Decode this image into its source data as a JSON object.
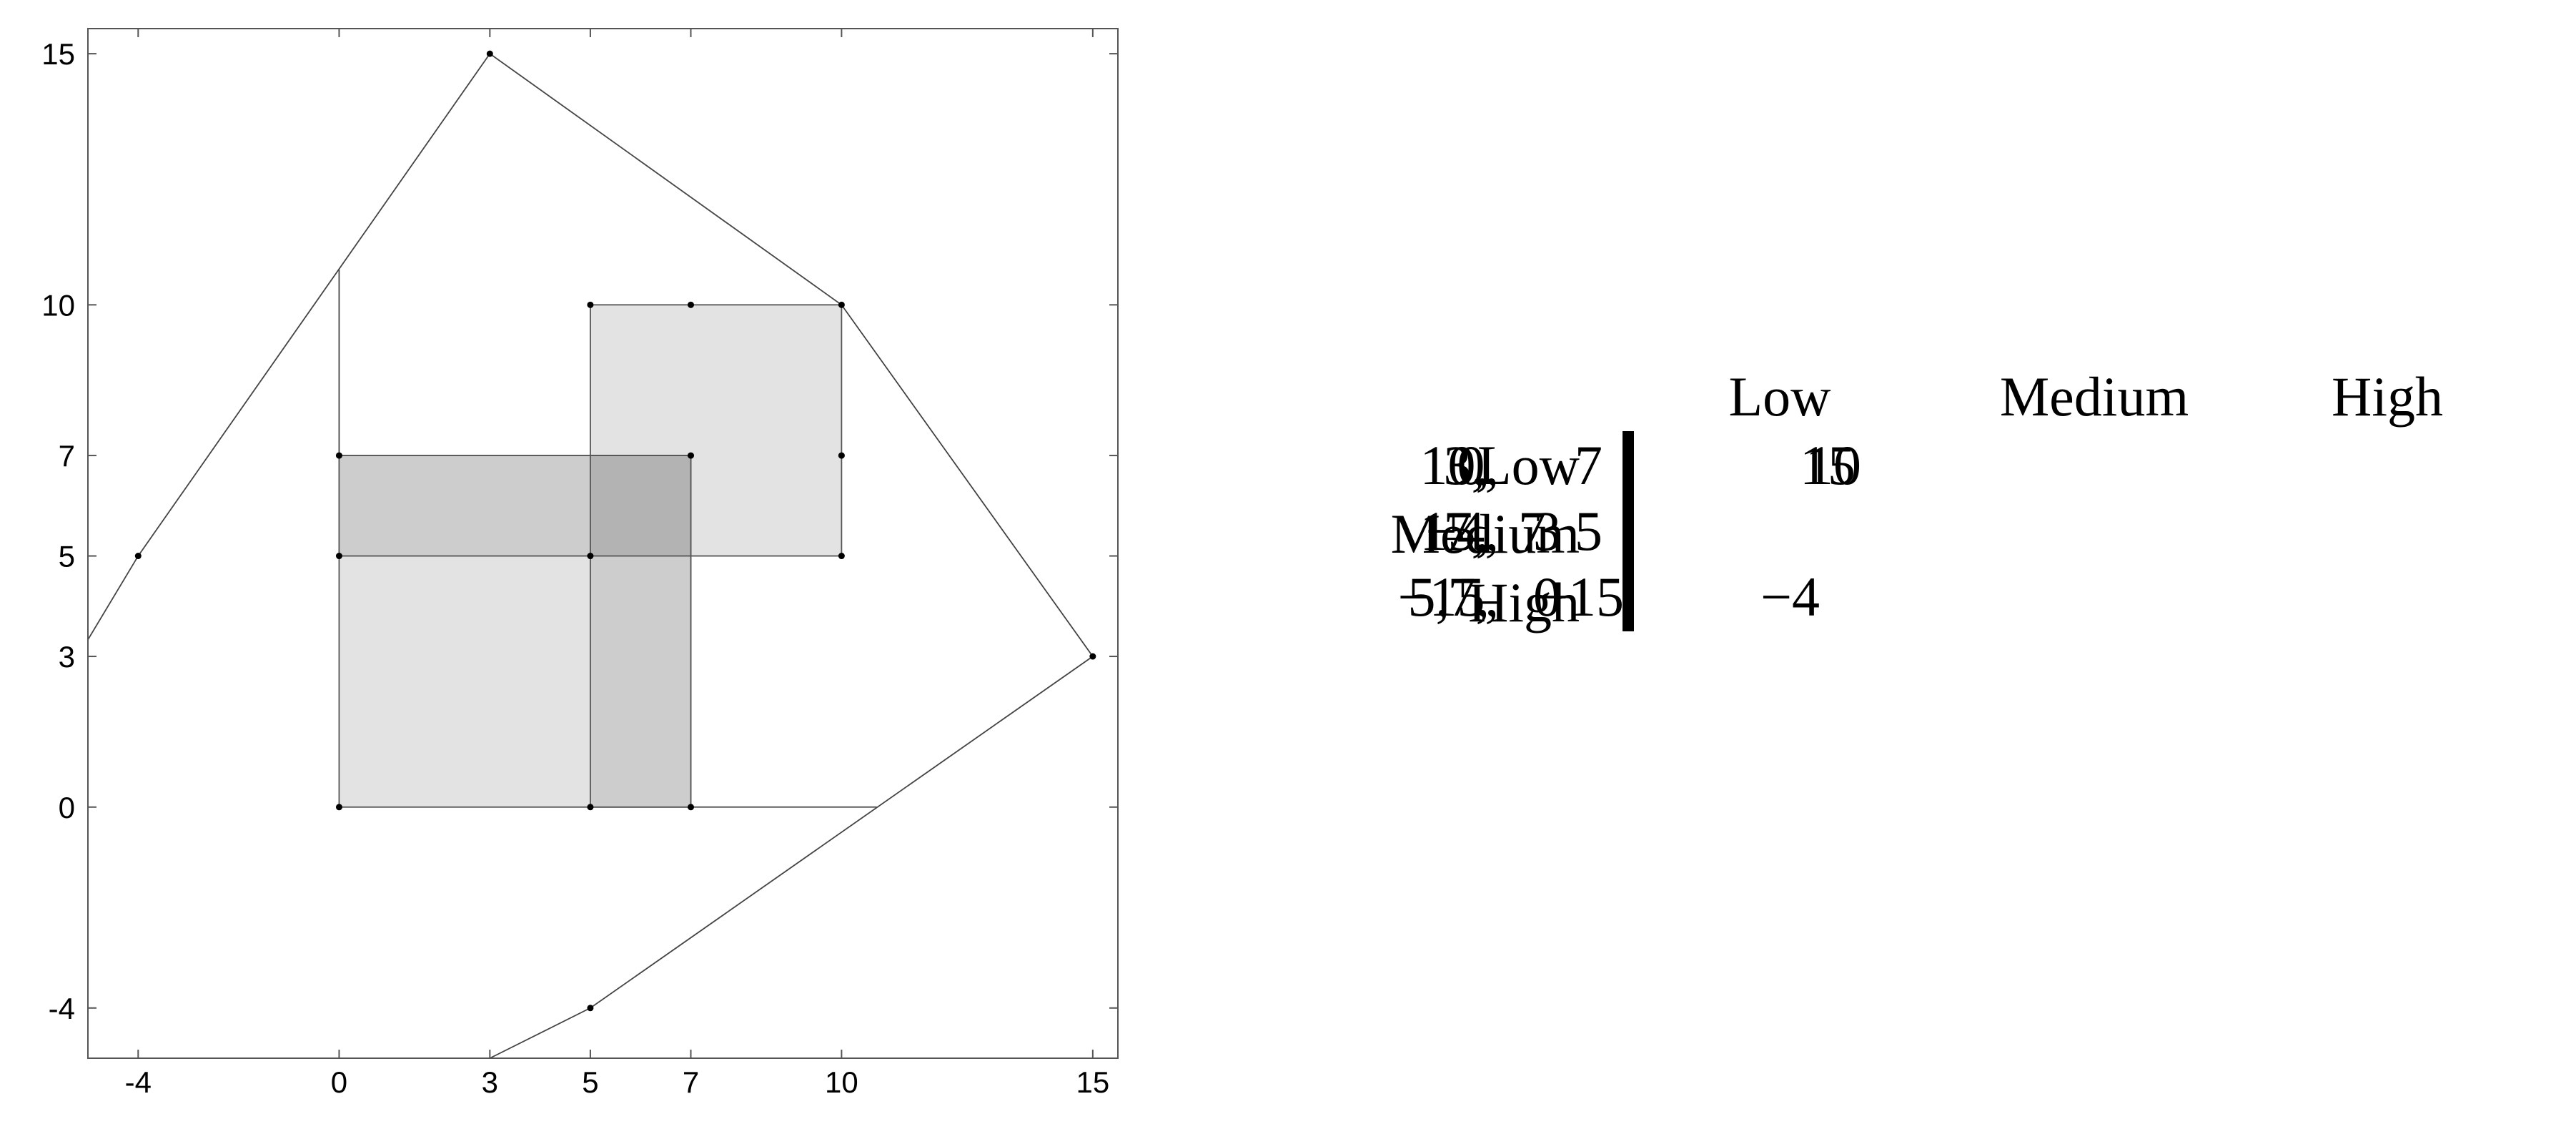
{
  "chart_data": {
    "type": "scatter",
    "title": "",
    "xlabel": "",
    "ylabel": "",
    "x_ticks": [
      -4,
      0,
      3,
      5,
      7,
      10,
      15
    ],
    "y_ticks": [
      -4,
      0,
      3,
      5,
      7,
      10,
      15
    ],
    "xlim": [
      -5,
      15.5
    ],
    "ylim": [
      -5,
      15.5
    ],
    "grid": false,
    "points": [
      {
        "x": 10,
        "y": 10
      },
      {
        "x": 3,
        "y": 15
      },
      {
        "x": 15,
        "y": 3
      },
      {
        "x": 7,
        "y": 7
      },
      {
        "x": 0,
        "y": 7
      },
      {
        "x": 7,
        "y": 0
      },
      {
        "x": 5,
        "y": -4
      },
      {
        "x": -4,
        "y": 5
      },
      {
        "x": 5,
        "y": 5
      },
      {
        "x": 0,
        "y": 0
      },
      {
        "x": 0,
        "y": 5
      },
      {
        "x": 5,
        "y": 0
      },
      {
        "x": 5,
        "y": 10
      },
      {
        "x": 7,
        "y": 10
      },
      {
        "x": 10,
        "y": 7
      },
      {
        "x": 10,
        "y": 5
      }
    ],
    "hull_polyline": [
      {
        "x": -5,
        "y": 3.333
      },
      {
        "x": -4,
        "y": 5
      },
      {
        "x": 3,
        "y": 15
      },
      {
        "x": 10,
        "y": 10
      },
      {
        "x": 15,
        "y": 3
      },
      {
        "x": 5,
        "y": -4
      },
      {
        "x": 3,
        "y": -5
      }
    ],
    "extra_segments": [
      {
        "from": {
          "x": 0,
          "y": 10.7
        },
        "to": {
          "x": 0,
          "y": 7
        }
      },
      {
        "from": {
          "x": 7,
          "y": 0
        },
        "to": {
          "x": 10.7,
          "y": 0
        }
      }
    ],
    "rectangles": [
      {
        "x0": 0,
        "x1": 7,
        "y0": 0,
        "y1": 7,
        "shade": "#e3e3e3"
      },
      {
        "x0": 5,
        "x1": 10,
        "y0": 5,
        "y1": 10,
        "shade": "#e3e3e3"
      },
      {
        "x0": 0,
        "x1": 7,
        "y0": 5,
        "y1": 7,
        "shade": "#cdcdcd"
      },
      {
        "x0": 5,
        "x1": 7,
        "y0": 0,
        "y1": 7,
        "shade": "#cdcdcd"
      },
      {
        "x0": 5,
        "x1": 7,
        "y0": 5,
        "y1": 7,
        "shade": "#b3b3b3"
      }
    ]
  },
  "payoff_matrix": {
    "column_headers": [
      "Low",
      "Medium",
      "High"
    ],
    "row_labels": [
      "Low",
      "Medium",
      "High"
    ],
    "cells": [
      [
        [
          "10,",
          "10"
        ],
        [
          "3,",
          "15"
        ],
        [
          "0,",
          "7"
        ]
      ],
      [
        [
          "15,",
          "3"
        ],
        [
          "7,",
          "7"
        ],
        [
          "−4,",
          "5"
        ]
      ],
      [
        [
          "7,",
          "0"
        ],
        [
          "5,",
          "−4"
        ],
        [
          "−15,",
          "−15"
        ]
      ]
    ]
  }
}
